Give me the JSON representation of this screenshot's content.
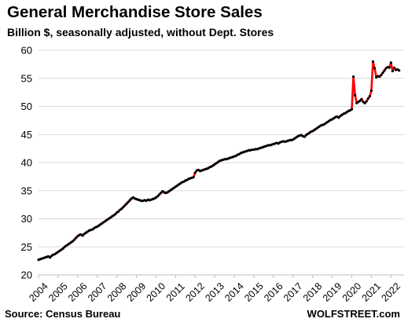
{
  "title": "General Merchandise  Store Sales",
  "subtitle": "Billion $, seasonally adjusted, without Dept. Stores",
  "source": "Source: Census Bureau",
  "brand": "WOLFSTREET.com",
  "colors": {
    "line": "#ff0000",
    "markers": "#000000",
    "grid": "#d9d9d9"
  },
  "chart_data": {
    "type": "line",
    "title": "General Merchandise  Store Sales",
    "subtitle": "Billion $, seasonally adjusted, without Dept. Stores",
    "xlabel": "",
    "ylabel": "",
    "ylim": [
      20,
      60
    ],
    "yticks": [
      20,
      25,
      30,
      35,
      40,
      45,
      50,
      55,
      60
    ],
    "xlim": [
      2004.0,
      2022.67
    ],
    "xticks": [
      "2004",
      "2005",
      "2006",
      "2007",
      "2008",
      "2009",
      "2010",
      "2011",
      "2012",
      "2013",
      "2014",
      "2015",
      "2016",
      "2017",
      "2018",
      "2019",
      "2020",
      "2021",
      "2022"
    ],
    "grid": "horizontal",
    "legend": "none",
    "series": [
      {
        "frequency": "monthly",
        "start": "2004-01",
        "values": [
          22.7,
          22.8,
          22.9,
          23.0,
          23.1,
          23.2,
          23.3,
          23.1,
          23.4,
          23.6,
          23.7,
          23.9,
          24.1,
          24.3,
          24.5,
          24.7,
          25.0,
          25.2,
          25.4,
          25.6,
          25.8,
          26.0,
          26.3,
          26.6,
          26.9,
          27.1,
          27.2,
          27.0,
          27.3,
          27.5,
          27.7,
          27.9,
          28.0,
          28.1,
          28.3,
          28.5,
          28.6,
          28.8,
          29.0,
          29.2,
          29.4,
          29.6,
          29.8,
          30.0,
          30.2,
          30.4,
          30.6,
          30.8,
          31.1,
          31.3,
          31.6,
          31.8,
          32.1,
          32.4,
          32.7,
          33.0,
          33.3,
          33.6,
          33.8,
          33.6,
          33.5,
          33.4,
          33.3,
          33.2,
          33.2,
          33.3,
          33.2,
          33.4,
          33.3,
          33.4,
          33.5,
          33.6,
          33.8,
          34.0,
          34.3,
          34.6,
          34.9,
          34.7,
          34.6,
          34.7,
          34.9,
          35.1,
          35.3,
          35.5,
          35.7,
          35.9,
          36.1,
          36.3,
          36.5,
          36.6,
          36.8,
          36.9,
          37.1,
          37.2,
          37.3,
          37.4,
          38.2,
          38.6,
          38.7,
          38.5,
          38.6,
          38.7,
          38.8,
          38.9,
          39.0,
          39.2,
          39.3,
          39.5,
          39.7,
          39.9,
          40.1,
          40.3,
          40.4,
          40.5,
          40.6,
          40.6,
          40.7,
          40.8,
          40.9,
          41.0,
          41.1,
          41.2,
          41.4,
          41.5,
          41.7,
          41.8,
          41.9,
          42.0,
          42.1,
          42.2,
          42.2,
          42.3,
          42.3,
          42.4,
          42.4,
          42.5,
          42.6,
          42.7,
          42.8,
          42.9,
          43.0,
          43.1,
          43.1,
          43.2,
          43.3,
          43.4,
          43.5,
          43.4,
          43.6,
          43.7,
          43.8,
          43.7,
          43.8,
          43.9,
          44.0,
          44.0,
          44.1,
          44.3,
          44.5,
          44.7,
          44.8,
          44.9,
          44.7,
          44.6,
          44.9,
          45.1,
          45.3,
          45.5,
          45.6,
          45.8,
          46.0,
          46.2,
          46.4,
          46.6,
          46.7,
          46.8,
          47.0,
          47.2,
          47.4,
          47.6,
          47.7,
          47.9,
          48.1,
          48.2,
          48.0,
          48.3,
          48.5,
          48.7,
          48.8,
          49.0,
          49.2,
          49.3,
          49.5,
          55.3,
          52.0,
          50.6,
          50.8,
          51.0,
          51.3,
          50.8,
          50.6,
          50.9,
          51.4,
          51.8,
          52.8,
          58.0,
          56.8,
          55.2,
          55.4,
          55.3,
          55.6,
          56.0,
          56.4,
          56.8,
          57.0,
          56.9,
          57.8,
          56.3,
          56.9,
          56.5,
          56.6,
          56.4
        ]
      }
    ]
  }
}
